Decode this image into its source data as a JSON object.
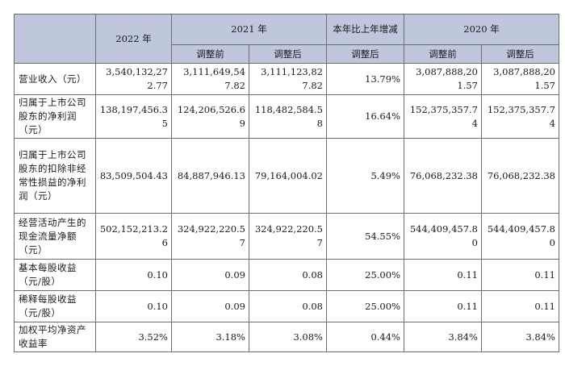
{
  "header": {
    "col_2022": "2022 年",
    "col_2021": "2021 年",
    "col_change": "本年比上年增减",
    "col_2020": "2020 年",
    "sub_before": "调整前",
    "sub_after": "调整后",
    "sub_change_after": "调整后",
    "sub_2020_before": "调整前",
    "sub_2020_after": "调整后"
  },
  "rows": [
    {
      "label": "营业收入（元）",
      "v2022": "3,540,132,272.77",
      "v2021_before": "3,111,649,547.82",
      "v2021_after": "3,111,123,827.82",
      "change": "13.79%",
      "v2020_before": "3,087,888,201.57",
      "v2020_after": "3,087,888,201.57"
    },
    {
      "label": "归属于上市公司股东的净利润（元）",
      "v2022": "138,197,456.35",
      "v2021_before": "124,206,526.69",
      "v2021_after": "118,482,584.58",
      "change": "16.64%",
      "v2020_before": "152,375,357.74",
      "v2020_after": "152,375,357.74"
    },
    {
      "label": "归属于上市公司股东的扣除非经常性损益的净利润（元）",
      "v2022": "83,509,504.43",
      "v2021_before": "84,887,946.13",
      "v2021_after": "79,164,004.02",
      "change": "5.49%",
      "v2020_before": "76,068,232.38",
      "v2020_after": "76,068,232.38"
    },
    {
      "label": "经营活动产生的现金流量净额（元）",
      "v2022": "502,152,213.26",
      "v2021_before": "324,922,220.57",
      "v2021_after": "324,922,220.57",
      "change": "54.55%",
      "v2020_before": "544,409,457.80",
      "v2020_after": "544,409,457.80"
    },
    {
      "label": "基本每股收益（元/股）",
      "v2022": "0.10",
      "v2021_before": "0.09",
      "v2021_after": "0.08",
      "change": "25.00%",
      "v2020_before": "0.11",
      "v2020_after": "0.11"
    },
    {
      "label": "稀释每股收益（元/股）",
      "v2022": "0.10",
      "v2021_before": "0.09",
      "v2021_after": "0.08",
      "change": "25.00%",
      "v2020_before": "0.11",
      "v2020_after": "0.11"
    },
    {
      "label": "加权平均净资产收益率",
      "v2022": "3.52%",
      "v2021_before": "3.18%",
      "v2021_after": "3.08%",
      "change": "0.44%",
      "v2020_before": "3.84%",
      "v2020_after": "3.84%"
    }
  ]
}
